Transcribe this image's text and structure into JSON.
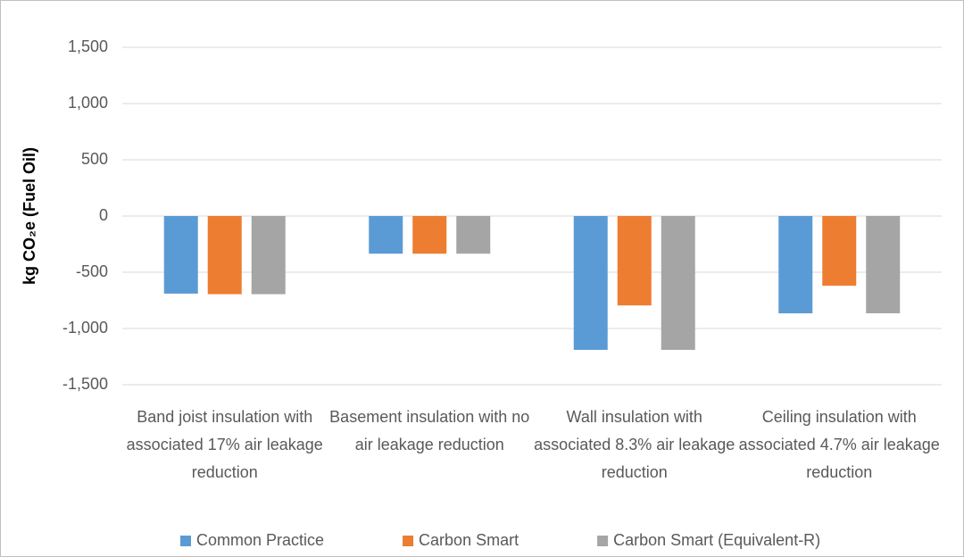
{
  "chart_data": {
    "type": "bar",
    "y_label": "kg CO₂e (Fuel Oil)",
    "categories": [
      "Band joist insulation with associated 17% air leakage reduction",
      "Basement insulation with no air leakage reduction",
      "Wall insulation with associated 8.3% air leakage reduction",
      "Ceiling insulation with associated 4.7% air leakage reduction"
    ],
    "series": [
      {
        "name": "Common Practice",
        "color": "#5B9BD5",
        "values": [
          -690,
          -335,
          -1190,
          -865
        ]
      },
      {
        "name": "Carbon Smart",
        "color": "#ED7D31",
        "values": [
          -695,
          -335,
          -795,
          -620
        ]
      },
      {
        "name": "Carbon Smart (Equivalent-R)",
        "color": "#A5A5A5",
        "values": [
          -695,
          -335,
          -1190,
          -865
        ]
      }
    ],
    "ylim": [
      -1500,
      1500
    ],
    "yticks": [
      {
        "value": -1500,
        "label": "-1,500"
      },
      {
        "value": -1000,
        "label": "-1,000"
      },
      -500,
      0,
      500,
      {
        "value": 1000,
        "label": "1,000"
      },
      {
        "value": 1500,
        "label": "1,500"
      }
    ],
    "grid": true,
    "legend": "bottom"
  }
}
